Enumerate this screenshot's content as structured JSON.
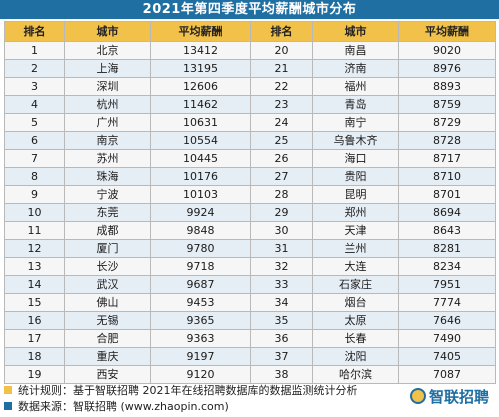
{
  "title": "2021年第四季度平均薪酬城市分布",
  "colors": {
    "title_bar": "#1f6fa3",
    "header": "#f1c14a",
    "brand": "#1f6fa3"
  },
  "headers": [
    "排名",
    "城市",
    "平均薪酬",
    "排名",
    "城市",
    "平均薪酬"
  ],
  "rows": [
    [
      "1",
      "北京",
      "13412",
      "20",
      "南昌",
      "9020"
    ],
    [
      "2",
      "上海",
      "13195",
      "21",
      "济南",
      "8976"
    ],
    [
      "3",
      "深圳",
      "12606",
      "22",
      "福州",
      "8893"
    ],
    [
      "4",
      "杭州",
      "11462",
      "23",
      "青岛",
      "8759"
    ],
    [
      "5",
      "广州",
      "10631",
      "24",
      "南宁",
      "8729"
    ],
    [
      "6",
      "南京",
      "10554",
      "25",
      "乌鲁木齐",
      "8728"
    ],
    [
      "7",
      "苏州",
      "10445",
      "26",
      "海口",
      "8717"
    ],
    [
      "8",
      "珠海",
      "10176",
      "27",
      "贵阳",
      "8710"
    ],
    [
      "9",
      "宁波",
      "10103",
      "28",
      "昆明",
      "8701"
    ],
    [
      "10",
      "东莞",
      "9924",
      "29",
      "郑州",
      "8694"
    ],
    [
      "11",
      "成都",
      "9848",
      "30",
      "天津",
      "8643"
    ],
    [
      "12",
      "厦门",
      "9780",
      "31",
      "兰州",
      "8281"
    ],
    [
      "13",
      "长沙",
      "9718",
      "32",
      "大连",
      "8234"
    ],
    [
      "14",
      "武汉",
      "9687",
      "33",
      "石家庄",
      "7951"
    ],
    [
      "15",
      "佛山",
      "9453",
      "34",
      "烟台",
      "7774"
    ],
    [
      "16",
      "无锡",
      "9365",
      "35",
      "太原",
      "7646"
    ],
    [
      "17",
      "合肥",
      "9363",
      "36",
      "长春",
      "7490"
    ],
    [
      "18",
      "重庆",
      "9197",
      "37",
      "沈阳",
      "7405"
    ],
    [
      "19",
      "西安",
      "9120",
      "38",
      "哈尔滨",
      "7087"
    ]
  ],
  "footer": {
    "note1": "统计规则：基于智联招聘 2021年在线招聘数据库的数据监测统计分析",
    "note1_color": "#f1c14a",
    "note2": "数据来源：智联招聘 (www.zhaopin.com)",
    "note2_color": "#1f6fa3",
    "brand": "智联招聘"
  }
}
